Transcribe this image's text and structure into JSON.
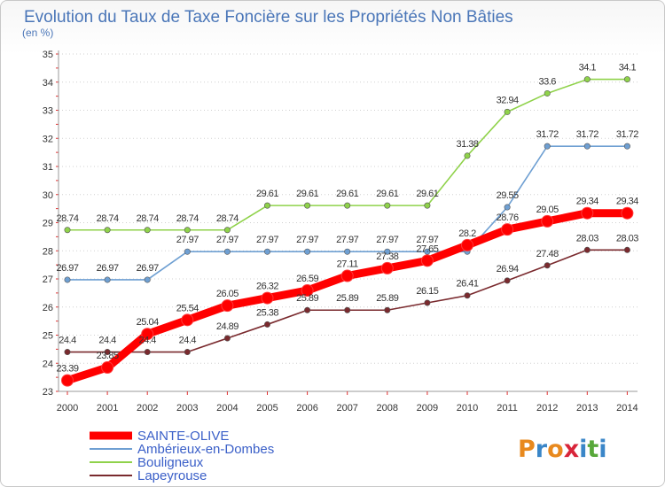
{
  "chart_data": {
    "type": "line",
    "title": "Evolution du Taux de Taxe Foncière sur les Propriétés Non Bâties",
    "subtitle": "(en %)",
    "xlabel": "",
    "ylabel": "",
    "categories": [
      "2000",
      "2001",
      "2002",
      "2003",
      "2004",
      "2005",
      "2006",
      "2007",
      "2008",
      "2009",
      "2010",
      "2011",
      "2012",
      "2013",
      "2014"
    ],
    "ylim": [
      23,
      35
    ],
    "yticks": [
      23,
      24,
      25,
      26,
      27,
      28,
      29,
      30,
      31,
      32,
      33,
      34,
      35
    ],
    "grid": "horizontal dotted",
    "legend_position": "bottom-left",
    "series": [
      {
        "name": "SAINTE-OLIVE",
        "color": "#ff0000",
        "values": [
          23.39,
          23.85,
          25.04,
          25.54,
          26.05,
          26.32,
          26.59,
          27.11,
          27.38,
          27.65,
          28.2,
          28.76,
          29.05,
          29.34,
          29.34
        ],
        "labels": [
          "23.39",
          "23.85",
          "25.04",
          "25.54",
          "26.05",
          "26.32",
          "26.59",
          "27.11",
          "27.38",
          "27.65",
          "28.2",
          "28.76",
          "29.05",
          "29.34",
          "29.34"
        ]
      },
      {
        "name": "Ambérieux-en-Dombes",
        "color": "#6e9fd2",
        "values": [
          26.97,
          26.97,
          26.97,
          27.97,
          27.97,
          27.97,
          27.97,
          27.97,
          27.97,
          27.97,
          27.97,
          29.55,
          31.72,
          31.72,
          31.72
        ],
        "labels": [
          "26.97",
          "26.97",
          "26.97",
          "27.97",
          "27.97",
          "27.97",
          "27.97",
          "27.97",
          "27.97",
          "27.97",
          "",
          "29.55",
          "31.72",
          "31.72",
          "31.72"
        ]
      },
      {
        "name": "Bouligneux",
        "color": "#8fd24a",
        "values": [
          28.74,
          28.74,
          28.74,
          28.74,
          28.74,
          29.61,
          29.61,
          29.61,
          29.61,
          29.61,
          31.38,
          32.94,
          33.6,
          34.1,
          34.1
        ],
        "labels": [
          "28.74",
          "28.74",
          "28.74",
          "28.74",
          "28.74",
          "29.61",
          "29.61",
          "29.61",
          "29.61",
          "29.61",
          "31.38",
          "32.94",
          "33.6",
          "34.1",
          "34.1"
        ]
      },
      {
        "name": "Lapeyrouse",
        "color": "#7a2a2e",
        "values": [
          24.4,
          24.4,
          24.4,
          24.4,
          24.89,
          25.38,
          25.89,
          25.89,
          25.89,
          26.15,
          26.41,
          26.94,
          27.48,
          28.03,
          28.03
        ],
        "labels": [
          "24.4",
          "24.4",
          "24.4",
          "24.4",
          "24.89",
          "25.38",
          "25.89",
          "25.89",
          "25.89",
          "26.15",
          "26.41",
          "26.94",
          "27.48",
          "28.03",
          "28.03"
        ]
      }
    ]
  },
  "branding": {
    "logo_text": "Proxiti",
    "logo_colors": [
      "#e8891e",
      "#3a86c8",
      "#e8891e",
      "#d8253a",
      "#3a86c8",
      "#58a83a",
      "#3a86c8"
    ]
  }
}
